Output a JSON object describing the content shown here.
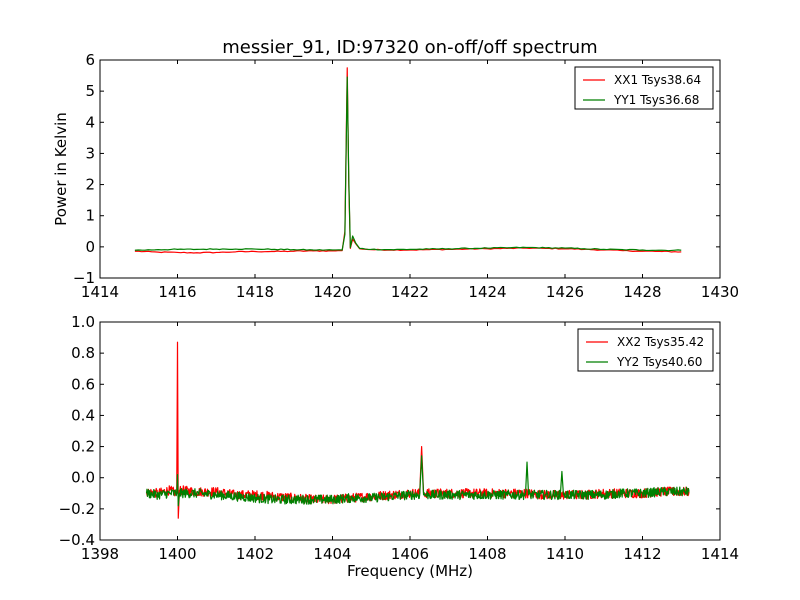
{
  "title": "messier_91, ID:97320 on-off/off spectrum",
  "chart_data": [
    {
      "type": "line",
      "title": "messier_91, ID:97320 on-off/off spectrum",
      "xlabel": "",
      "ylabel": "Power in Kelvin",
      "xlim": [
        1414,
        1430
      ],
      "ylim": [
        -1,
        6
      ],
      "xticks": [
        1414,
        1416,
        1418,
        1420,
        1422,
        1424,
        1426,
        1428,
        1430
      ],
      "yticks": [
        -1,
        0,
        1,
        2,
        3,
        4,
        5,
        6
      ],
      "xtick_labels": [
        "1414",
        "1416",
        "1418",
        "1420",
        "1422",
        "1424",
        "1426",
        "1428",
        "1430"
      ],
      "ytick_labels": [
        "−1",
        "0",
        "1",
        "2",
        "3",
        "4",
        "5",
        "6"
      ],
      "legend_position": "top-right",
      "grid": false,
      "series": [
        {
          "name": "XX1 Tsys38.64",
          "color": "#ff0000",
          "points": [
            [
              1414.9,
              -0.14
            ],
            [
              1415.5,
              -0.17
            ],
            [
              1416.0,
              -0.18
            ],
            [
              1416.5,
              -0.19
            ],
            [
              1417.0,
              -0.18
            ],
            [
              1417.5,
              -0.16
            ],
            [
              1418.0,
              -0.15
            ],
            [
              1418.5,
              -0.15
            ],
            [
              1419.0,
              -0.14
            ],
            [
              1419.5,
              -0.13
            ],
            [
              1420.0,
              -0.13
            ],
            [
              1420.25,
              -0.12
            ],
            [
              1420.32,
              0.5
            ],
            [
              1420.38,
              5.75
            ],
            [
              1420.42,
              2.0
            ],
            [
              1420.46,
              -0.05
            ],
            [
              1420.52,
              0.25
            ],
            [
              1420.6,
              0.1
            ],
            [
              1420.7,
              -0.06
            ],
            [
              1421.0,
              -0.09
            ],
            [
              1421.5,
              -0.1
            ],
            [
              1422.0,
              -0.1
            ],
            [
              1422.5,
              -0.09
            ],
            [
              1423.0,
              -0.08
            ],
            [
              1423.5,
              -0.07
            ],
            [
              1424.0,
              -0.06
            ],
            [
              1424.5,
              -0.05
            ],
            [
              1425.0,
              -0.04
            ],
            [
              1425.5,
              -0.05
            ],
            [
              1426.0,
              -0.06
            ],
            [
              1426.5,
              -0.08
            ],
            [
              1427.0,
              -0.1
            ],
            [
              1427.5,
              -0.12
            ],
            [
              1428.0,
              -0.14
            ],
            [
              1428.5,
              -0.15
            ],
            [
              1429.0,
              -0.16
            ]
          ]
        },
        {
          "name": "YY1 Tsys36.68",
          "color": "#007f00",
          "points": [
            [
              1414.9,
              -0.11
            ],
            [
              1415.5,
              -0.09
            ],
            [
              1416.0,
              -0.08
            ],
            [
              1416.5,
              -0.08
            ],
            [
              1417.0,
              -0.07
            ],
            [
              1417.5,
              -0.07
            ],
            [
              1418.0,
              -0.07
            ],
            [
              1418.5,
              -0.08
            ],
            [
              1419.0,
              -0.09
            ],
            [
              1419.5,
              -0.1
            ],
            [
              1420.0,
              -0.1
            ],
            [
              1420.25,
              -0.1
            ],
            [
              1420.32,
              0.4
            ],
            [
              1420.38,
              5.45
            ],
            [
              1420.42,
              2.2
            ],
            [
              1420.46,
              -0.02
            ],
            [
              1420.52,
              0.35
            ],
            [
              1420.6,
              0.12
            ],
            [
              1420.7,
              -0.05
            ],
            [
              1421.0,
              -0.08
            ],
            [
              1421.5,
              -0.09
            ],
            [
              1422.0,
              -0.08
            ],
            [
              1422.5,
              -0.07
            ],
            [
              1423.0,
              -0.06
            ],
            [
              1423.5,
              -0.05
            ],
            [
              1424.0,
              -0.04
            ],
            [
              1424.5,
              -0.03
            ],
            [
              1425.0,
              -0.02
            ],
            [
              1425.5,
              -0.03
            ],
            [
              1426.0,
              -0.04
            ],
            [
              1426.5,
              -0.06
            ],
            [
              1427.0,
              -0.08
            ],
            [
              1427.5,
              -0.09
            ],
            [
              1428.0,
              -0.1
            ],
            [
              1428.5,
              -0.11
            ],
            [
              1429.0,
              -0.11
            ]
          ]
        }
      ]
    },
    {
      "type": "line",
      "title": "",
      "xlabel": "Frequency (MHz)",
      "ylabel": "",
      "xlim": [
        1398,
        1414
      ],
      "ylim": [
        -0.4,
        1.0
      ],
      "xticks": [
        1398,
        1400,
        1402,
        1404,
        1406,
        1408,
        1410,
        1412,
        1414
      ],
      "yticks": [
        -0.4,
        -0.2,
        0.0,
        0.2,
        0.4,
        0.6,
        0.8,
        1.0
      ],
      "xtick_labels": [
        "1398",
        "1400",
        "1402",
        "1404",
        "1406",
        "1408",
        "1410",
        "1412",
        "1414"
      ],
      "ytick_labels": [
        "−0.4",
        "−0.2",
        "0.0",
        "0.2",
        "0.4",
        "0.6",
        "0.8",
        "1.0"
      ],
      "legend_position": "top-right",
      "grid": false,
      "series": [
        {
          "name": "XX2 Tsys35.42",
          "color": "#ff0000",
          "points": [
            [
              1399.2,
              -0.09
            ],
            [
              1399.5,
              -0.1
            ],
            [
              1399.8,
              -0.08
            ],
            [
              1399.98,
              -0.1
            ],
            [
              1400.0,
              0.87
            ],
            [
              1400.02,
              -0.26
            ],
            [
              1400.05,
              -0.08
            ],
            [
              1400.5,
              -0.09
            ],
            [
              1401.0,
              -0.09
            ],
            [
              1401.5,
              -0.11
            ],
            [
              1402.0,
              -0.11
            ],
            [
              1402.5,
              -0.12
            ],
            [
              1403.0,
              -0.13
            ],
            [
              1403.5,
              -0.14
            ],
            [
              1404.0,
              -0.14
            ],
            [
              1404.5,
              -0.13
            ],
            [
              1405.0,
              -0.12
            ],
            [
              1405.5,
              -0.11
            ],
            [
              1406.0,
              -0.1
            ],
            [
              1406.25,
              -0.1
            ],
            [
              1406.3,
              0.2
            ],
            [
              1406.35,
              -0.1
            ],
            [
              1406.5,
              -0.1
            ],
            [
              1407.0,
              -0.1
            ],
            [
              1407.5,
              -0.1
            ],
            [
              1408.0,
              -0.1
            ],
            [
              1408.5,
              -0.1
            ],
            [
              1409.0,
              -0.1
            ],
            [
              1409.5,
              -0.11
            ],
            [
              1410.0,
              -0.11
            ],
            [
              1410.5,
              -0.11
            ],
            [
              1411.0,
              -0.1
            ],
            [
              1411.5,
              -0.1
            ],
            [
              1412.0,
              -0.1
            ],
            [
              1412.5,
              -0.09
            ],
            [
              1413.2,
              -0.09
            ]
          ],
          "noise_amplitude": 0.03
        },
        {
          "name": "YY2 Tsys40.60",
          "color": "#007f00",
          "points": [
            [
              1399.2,
              -0.1
            ],
            [
              1399.5,
              -0.11
            ],
            [
              1399.8,
              -0.1
            ],
            [
              1399.98,
              -0.1
            ],
            [
              1400.0,
              0.02
            ],
            [
              1400.02,
              -0.18
            ],
            [
              1400.05,
              -0.1
            ],
            [
              1400.5,
              -0.1
            ],
            [
              1401.0,
              -0.11
            ],
            [
              1401.5,
              -0.12
            ],
            [
              1402.0,
              -0.13
            ],
            [
              1402.5,
              -0.14
            ],
            [
              1403.0,
              -0.14
            ],
            [
              1403.5,
              -0.14
            ],
            [
              1404.0,
              -0.14
            ],
            [
              1404.5,
              -0.13
            ],
            [
              1405.0,
              -0.13
            ],
            [
              1405.5,
              -0.12
            ],
            [
              1406.0,
              -0.11
            ],
            [
              1406.25,
              -0.11
            ],
            [
              1406.3,
              0.14
            ],
            [
              1406.35,
              -0.11
            ],
            [
              1406.5,
              -0.11
            ],
            [
              1407.0,
              -0.11
            ],
            [
              1407.5,
              -0.11
            ],
            [
              1408.0,
              -0.11
            ],
            [
              1408.5,
              -0.11
            ],
            [
              1408.98,
              -0.11
            ],
            [
              1409.02,
              0.1
            ],
            [
              1409.06,
              -0.11
            ],
            [
              1409.5,
              -0.11
            ],
            [
              1409.88,
              -0.11
            ],
            [
              1409.92,
              0.04
            ],
            [
              1409.96,
              -0.11
            ],
            [
              1410.5,
              -0.11
            ],
            [
              1411.0,
              -0.11
            ],
            [
              1411.5,
              -0.1
            ],
            [
              1412.0,
              -0.1
            ],
            [
              1412.5,
              -0.09
            ],
            [
              1413.2,
              -0.09
            ]
          ],
          "noise_amplitude": 0.03
        }
      ]
    }
  ]
}
